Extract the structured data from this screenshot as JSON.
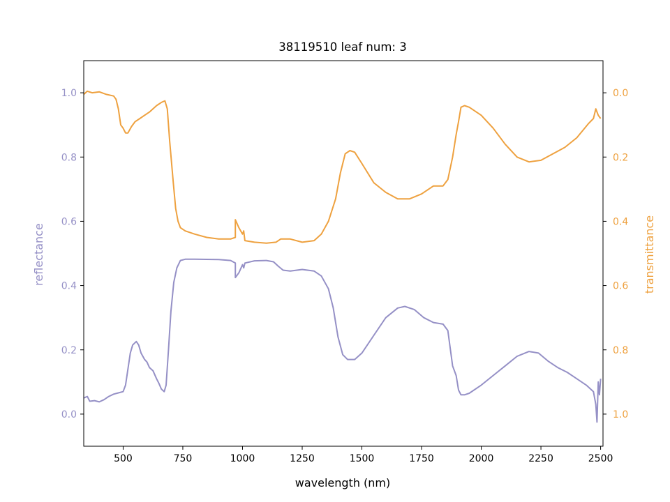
{
  "chart_data": {
    "type": "line",
    "title": "38119510 leaf num: 3",
    "xlabel": "wavelength (nm)",
    "ylabel_left": "reflectance",
    "ylabel_right": "transmittance",
    "xlim": [
      335,
      2510
    ],
    "ylim_left": [
      -0.1,
      1.1
    ],
    "ylim_right": [
      1.1,
      -0.1
    ],
    "right_axis_inverted": true,
    "grid": false,
    "x_ticks": [
      500,
      750,
      1000,
      1250,
      1500,
      1750,
      2000,
      2250,
      2500
    ],
    "y_ticks_left": [
      0.0,
      0.2,
      0.4,
      0.6,
      0.8,
      1.0
    ],
    "y_ticks_right": [
      0.0,
      0.2,
      0.4,
      0.6,
      0.8,
      1.0
    ],
    "colors": {
      "reflectance": "#9590c6",
      "transmittance": "#eea13f"
    },
    "series": [
      {
        "name": "reflectance",
        "axis": "left",
        "points": [
          [
            335,
            0.05
          ],
          [
            350,
            0.055
          ],
          [
            360,
            0.04
          ],
          [
            380,
            0.042
          ],
          [
            400,
            0.038
          ],
          [
            420,
            0.045
          ],
          [
            440,
            0.055
          ],
          [
            460,
            0.062
          ],
          [
            480,
            0.066
          ],
          [
            500,
            0.07
          ],
          [
            510,
            0.09
          ],
          [
            520,
            0.14
          ],
          [
            530,
            0.19
          ],
          [
            540,
            0.215
          ],
          [
            555,
            0.226
          ],
          [
            565,
            0.215
          ],
          [
            575,
            0.19
          ],
          [
            590,
            0.17
          ],
          [
            600,
            0.162
          ],
          [
            610,
            0.145
          ],
          [
            625,
            0.135
          ],
          [
            640,
            0.11
          ],
          [
            650,
            0.095
          ],
          [
            660,
            0.078
          ],
          [
            672,
            0.07
          ],
          [
            680,
            0.09
          ],
          [
            690,
            0.2
          ],
          [
            700,
            0.32
          ],
          [
            712,
            0.41
          ],
          [
            725,
            0.455
          ],
          [
            740,
            0.478
          ],
          [
            760,
            0.482
          ],
          [
            800,
            0.482
          ],
          [
            900,
            0.481
          ],
          [
            950,
            0.478
          ],
          [
            970,
            0.47
          ],
          [
            970,
            0.425
          ],
          [
            985,
            0.44
          ],
          [
            1000,
            0.465
          ],
          [
            1005,
            0.455
          ],
          [
            1010,
            0.47
          ],
          [
            1050,
            0.477
          ],
          [
            1100,
            0.478
          ],
          [
            1130,
            0.474
          ],
          [
            1150,
            0.46
          ],
          [
            1170,
            0.448
          ],
          [
            1200,
            0.445
          ],
          [
            1250,
            0.45
          ],
          [
            1300,
            0.445
          ],
          [
            1330,
            0.43
          ],
          [
            1360,
            0.39
          ],
          [
            1380,
            0.33
          ],
          [
            1400,
            0.24
          ],
          [
            1420,
            0.185
          ],
          [
            1440,
            0.17
          ],
          [
            1470,
            0.17
          ],
          [
            1500,
            0.19
          ],
          [
            1550,
            0.245
          ],
          [
            1600,
            0.3
          ],
          [
            1650,
            0.33
          ],
          [
            1680,
            0.335
          ],
          [
            1720,
            0.325
          ],
          [
            1760,
            0.3
          ],
          [
            1800,
            0.285
          ],
          [
            1840,
            0.28
          ],
          [
            1860,
            0.26
          ],
          [
            1880,
            0.15
          ],
          [
            1895,
            0.12
          ],
          [
            1905,
            0.075
          ],
          [
            1915,
            0.06
          ],
          [
            1930,
            0.06
          ],
          [
            1950,
            0.065
          ],
          [
            2000,
            0.09
          ],
          [
            2050,
            0.12
          ],
          [
            2100,
            0.15
          ],
          [
            2150,
            0.18
          ],
          [
            2200,
            0.195
          ],
          [
            2240,
            0.19
          ],
          [
            2280,
            0.165
          ],
          [
            2320,
            0.145
          ],
          [
            2360,
            0.13
          ],
          [
            2400,
            0.11
          ],
          [
            2440,
            0.09
          ],
          [
            2470,
            0.07
          ],
          [
            2480,
            0.03
          ],
          [
            2485,
            -0.025
          ],
          [
            2490,
            0.1
          ],
          [
            2495,
            0.06
          ],
          [
            2500,
            0.11
          ]
        ]
      },
      {
        "name": "transmittance",
        "axis": "right",
        "points": [
          [
            335,
            0.005
          ],
          [
            350,
            -0.005
          ],
          [
            370,
            0.0
          ],
          [
            400,
            -0.003
          ],
          [
            430,
            0.005
          ],
          [
            460,
            0.01
          ],
          [
            470,
            0.02
          ],
          [
            480,
            0.05
          ],
          [
            490,
            0.1
          ],
          [
            500,
            0.11
          ],
          [
            510,
            0.125
          ],
          [
            520,
            0.125
          ],
          [
            535,
            0.105
          ],
          [
            550,
            0.09
          ],
          [
            570,
            0.08
          ],
          [
            590,
            0.07
          ],
          [
            610,
            0.06
          ],
          [
            640,
            0.04
          ],
          [
            660,
            0.03
          ],
          [
            675,
            0.025
          ],
          [
            685,
            0.05
          ],
          [
            695,
            0.15
          ],
          [
            710,
            0.28
          ],
          [
            720,
            0.36
          ],
          [
            730,
            0.4
          ],
          [
            740,
            0.42
          ],
          [
            760,
            0.43
          ],
          [
            800,
            0.44
          ],
          [
            850,
            0.45
          ],
          [
            900,
            0.455
          ],
          [
            950,
            0.455
          ],
          [
            970,
            0.45
          ],
          [
            970,
            0.395
          ],
          [
            985,
            0.42
          ],
          [
            1000,
            0.44
          ],
          [
            1005,
            0.43
          ],
          [
            1010,
            0.46
          ],
          [
            1050,
            0.465
          ],
          [
            1100,
            0.468
          ],
          [
            1140,
            0.465
          ],
          [
            1160,
            0.455
          ],
          [
            1200,
            0.455
          ],
          [
            1250,
            0.465
          ],
          [
            1300,
            0.46
          ],
          [
            1330,
            0.44
          ],
          [
            1360,
            0.4
          ],
          [
            1390,
            0.33
          ],
          [
            1410,
            0.25
          ],
          [
            1430,
            0.19
          ],
          [
            1450,
            0.18
          ],
          [
            1470,
            0.185
          ],
          [
            1500,
            0.22
          ],
          [
            1550,
            0.28
          ],
          [
            1600,
            0.31
          ],
          [
            1650,
            0.33
          ],
          [
            1700,
            0.33
          ],
          [
            1750,
            0.315
          ],
          [
            1800,
            0.29
          ],
          [
            1840,
            0.29
          ],
          [
            1860,
            0.27
          ],
          [
            1880,
            0.2
          ],
          [
            1895,
            0.13
          ],
          [
            1905,
            0.09
          ],
          [
            1915,
            0.045
          ],
          [
            1930,
            0.04
          ],
          [
            1950,
            0.045
          ],
          [
            2000,
            0.07
          ],
          [
            2050,
            0.11
          ],
          [
            2100,
            0.16
          ],
          [
            2150,
            0.2
          ],
          [
            2200,
            0.215
          ],
          [
            2250,
            0.21
          ],
          [
            2300,
            0.19
          ],
          [
            2350,
            0.17
          ],
          [
            2400,
            0.14
          ],
          [
            2450,
            0.095
          ],
          [
            2470,
            0.08
          ],
          [
            2480,
            0.05
          ],
          [
            2490,
            0.07
          ],
          [
            2500,
            0.08
          ]
        ]
      }
    ]
  }
}
